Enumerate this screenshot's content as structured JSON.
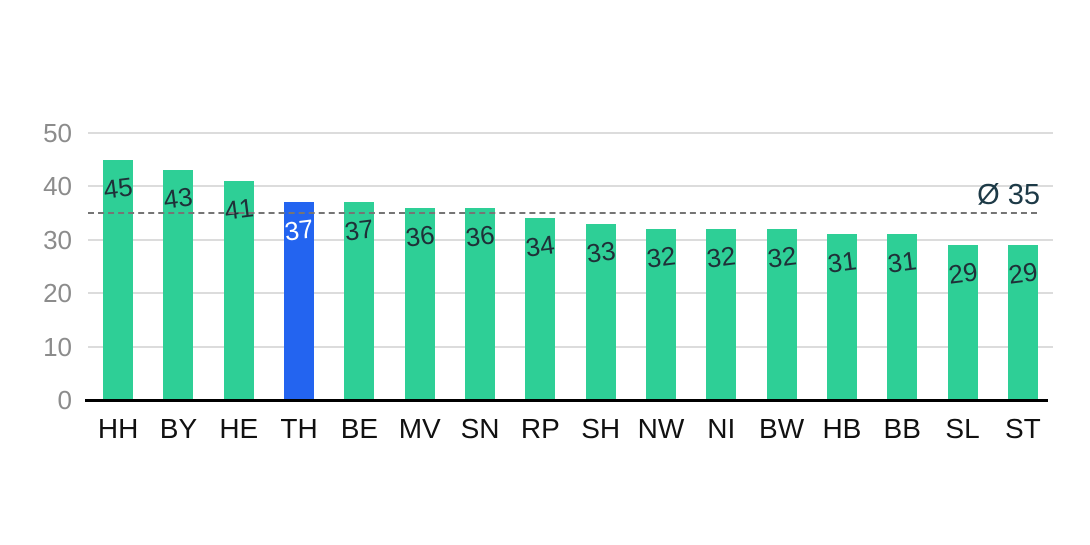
{
  "chart_data": {
    "type": "bar",
    "title": "",
    "xlabel": "",
    "ylabel": "",
    "categories": [
      "HH",
      "BY",
      "HE",
      "TH",
      "BE",
      "MV",
      "SN",
      "RP",
      "SH",
      "NW",
      "NI",
      "BW",
      "HB",
      "BB",
      "SL",
      "ST"
    ],
    "values": [
      45,
      43,
      41,
      37,
      37,
      36,
      36,
      34,
      33,
      32,
      32,
      32,
      31,
      31,
      29,
      29
    ],
    "highlight_category": "TH",
    "highlight_index": 3,
    "ylim": [
      0,
      50
    ],
    "yticks": [
      0,
      10,
      20,
      30,
      40,
      50
    ],
    "grid": true,
    "legend": "none",
    "average_line": {
      "value": 35,
      "label": "Ø 35"
    },
    "colors": {
      "bar": "#2ecf96",
      "highlight_bar": "#2364f0",
      "value_label_dark": "#1f3038",
      "value_label_light": "#ffffff",
      "avg_label": "#1d3a47",
      "avg_line": "#757575",
      "gridline": "#dcdcdc",
      "axis_line": "#000000",
      "ytick_label": "#8c8c8c",
      "xtick_label": "#111111"
    }
  }
}
